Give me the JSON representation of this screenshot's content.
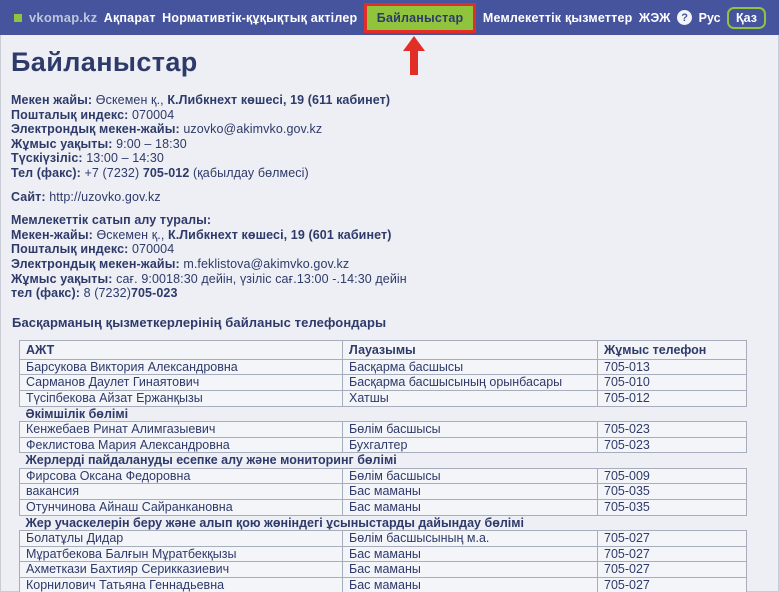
{
  "nav": {
    "logo_text": "vkomap.kz",
    "help_icon": "?",
    "items": [
      {
        "label": "Ақпарат"
      },
      {
        "label": "Нормативтік-құқықтық актілер"
      },
      {
        "label": "Байланыстар",
        "active": true
      },
      {
        "label": "Мемлекеттік қызметтер"
      },
      {
        "label": "ЖЭЖ"
      },
      {
        "label": "Рус"
      },
      {
        "label": "Қаз",
        "selected_language": true
      }
    ]
  },
  "annotation": {
    "highlight_color": "#e12e26",
    "target": "Байланыстар",
    "shape": "red box around active nav item with red arrow pointing up"
  },
  "page": {
    "title": "Байланыстар"
  },
  "contact_blocks": [
    {
      "lines": [
        [
          {
            "bold": true,
            "text": "Мекен жайы: "
          },
          {
            "bold": false,
            "text": "Өскемен қ., "
          },
          {
            "bold": true,
            "text": "К.Либкнехт көшесі, 19 (611 кабинет)"
          }
        ],
        [
          {
            "bold": true,
            "text": "Пошталық индекс: "
          },
          {
            "bold": false,
            "text": "070004"
          }
        ],
        [
          {
            "bold": true,
            "text": "Электрондық мекен-жайы: "
          },
          {
            "bold": false,
            "text": "uzovko@akimvko.gov.kz",
            "link": true,
            "name": "email-link"
          }
        ],
        [
          {
            "bold": true,
            "text": "Жұмыс уақыты: "
          },
          {
            "bold": false,
            "text": "9:00 – 18:30"
          }
        ],
        [
          {
            "bold": true,
            "text": "Түскіүзіліс: "
          },
          {
            "bold": false,
            "text": "13:00 – 14:30"
          }
        ],
        [
          {
            "bold": true,
            "text": "Тел (факс): "
          },
          {
            "bold": false,
            "text": "+7 (7232) "
          },
          {
            "bold": true,
            "text": "705-012"
          },
          {
            "bold": false,
            "text": " (қабылдау бөлмесі)"
          }
        ]
      ]
    },
    {
      "lines": [
        [
          {
            "bold": true,
            "text": "Сайт: "
          },
          {
            "bold": false,
            "text": "http://uzovko.gov.kz",
            "link": true,
            "name": "site-link"
          }
        ]
      ]
    },
    {
      "lines": [
        [
          {
            "bold": true,
            "text": "Мемлекеттік сатып алу туралы:"
          }
        ],
        [
          {
            "bold": true,
            "text": "Мекен-жайы: "
          },
          {
            "bold": false,
            "text": "Өскемен қ., "
          },
          {
            "bold": true,
            "text": "К.Либкнехт көшесі, 19 (601 кабинет)"
          }
        ],
        [
          {
            "bold": true,
            "text": "Пошталық индекс: "
          },
          {
            "bold": false,
            "text": "070004"
          }
        ],
        [
          {
            "bold": true,
            "text": "Электрондық мекен-жайы: "
          },
          {
            "bold": false,
            "text": "m.feklistova@akimvko.gov.kz",
            "link": true,
            "name": "email-link"
          }
        ],
        [
          {
            "bold": true,
            "text": "Жұмыс уақыты: "
          },
          {
            "bold": false,
            "text": "сағ. 9:0018:30 дейін, үзіліс сағ.13:00 -.14:30 дейін"
          }
        ],
        [
          {
            "bold": true,
            "text": "тел (факс): "
          },
          {
            "bold": false,
            "text": "8 (7232)"
          },
          {
            "bold": true,
            "text": "705-023"
          }
        ]
      ]
    }
  ],
  "contacts_table": {
    "title": "Басқарманың қызметкерлерінің байланыс телефондары",
    "headers": [
      "АЖТ",
      "Лауазымы",
      "Жұмыс телефон"
    ],
    "rows": [
      {
        "type": "person",
        "name": "Барсукова Виктория Александровна",
        "position": "Басқарма басшысы",
        "phone": "705-013"
      },
      {
        "type": "person",
        "name": "Сарманов Даулет Гинаятович",
        "position": "Басқарма басшысының орынбасары",
        "phone": "705-010"
      },
      {
        "type": "person",
        "name": "Түсіпбекова Айзат Ержанқызы",
        "position": "Хатшы",
        "phone": "705-012"
      },
      {
        "type": "section",
        "title": "Әкімшілік бөлімі"
      },
      {
        "type": "person",
        "name": "Кенжебаев Ринат Алимгазыевич",
        "position": "Бөлім басшысы",
        "phone": "705-023"
      },
      {
        "type": "person",
        "name": "Феклистова Мария Александровна",
        "position": "Бухгалтер",
        "phone": "705-023"
      },
      {
        "type": "section",
        "title": "Жерлерді пайдалануды есепке алу және мониторинг бөлімі"
      },
      {
        "type": "person",
        "name": "Фирсова Оксана Федоровна",
        "position": "Бөлім басшысы",
        "phone": "705-009"
      },
      {
        "type": "person",
        "name": "вакансия",
        "position": "Бас маманы",
        "phone": "705-035"
      },
      {
        "type": "person",
        "name": "Отунчинова Айнаш Сайранкановна",
        "position": "Бас маманы",
        "phone": "705-035"
      },
      {
        "type": "section",
        "title": "Жер учаскелерін беру және алып қою жөніндегі ұсыныстарды дайындау бөлімі"
      },
      {
        "type": "person",
        "name": "Болатұлы Дидар",
        "position": "Бөлім басшысының м.а.",
        "phone": "705-027"
      },
      {
        "type": "person",
        "name": "Мұратбекова Балғын Мұратбекқызы",
        "position": "Бас маманы",
        "phone": "705-027"
      },
      {
        "type": "person",
        "name": "Ахметкази Бахтияр Серикказиевич",
        "position": "Бас маманы",
        "phone": "705-027"
      },
      {
        "type": "person",
        "name": "Корнилович Татьяна Геннадьевна",
        "position": "Бас маманы",
        "phone": "705-027"
      }
    ]
  },
  "colors": {
    "nav_background": "#45549c",
    "accent_green": "#8fc43c",
    "annotation_red": "#e12e26",
    "page_background": "#edeff4",
    "text_navy": "#2e3a6a",
    "table_border": "#a6adbd",
    "row_background": "#f3f5f9"
  }
}
